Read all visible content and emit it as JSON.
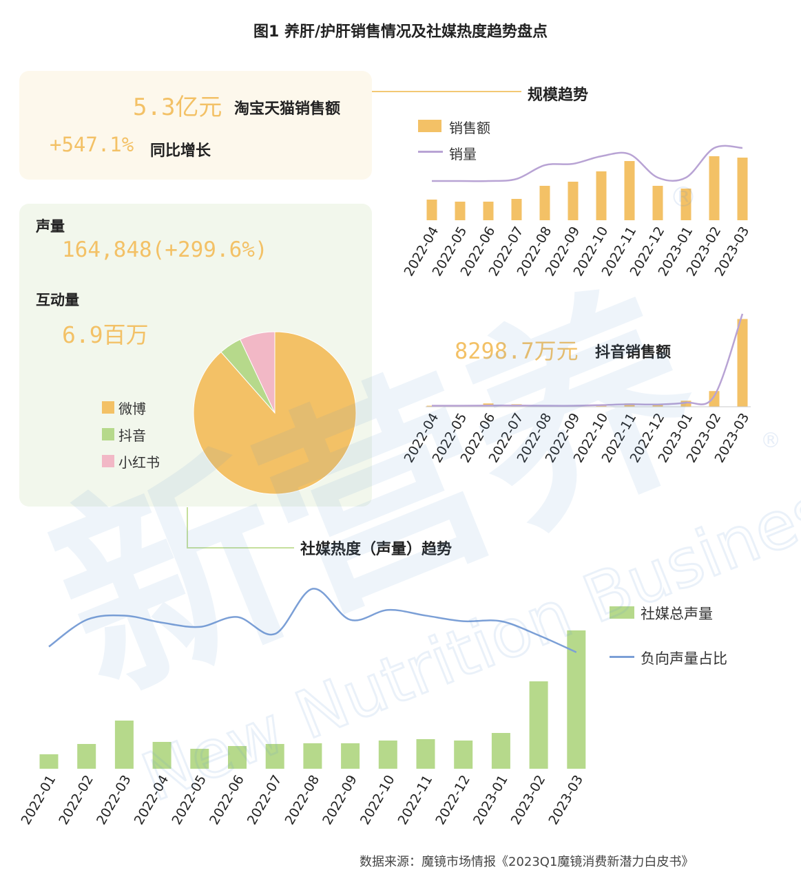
{
  "title": "图1 养肝/护肝销售情况及社媒热度趋势盘点",
  "sales_summary": {
    "amount": "5.3亿元",
    "amount_label": "淘宝天猫销售额",
    "growth": "+547.1%",
    "growth_label": "同比增长"
  },
  "scale_trend": {
    "title": "规模趋势",
    "legend_sales": "销售额",
    "legend_volume": "销量"
  },
  "social_summary": {
    "voice_label": "声量",
    "voice_value": "164,848(+299.6%)",
    "interaction_label": "互动量",
    "interaction_value": "6.9百万",
    "legend": [
      "微博",
      "抖音",
      "小红书"
    ]
  },
  "douyin": {
    "amount": "8298.7万元",
    "label": "抖音销售额"
  },
  "social_trend_title": "社媒热度（声量）趋势",
  "social_legend": {
    "bars": "社媒总声量",
    "line": "负向声量占比"
  },
  "watermark": {
    "cn": "新营养",
    "en": "New Nutrition Business"
  },
  "source": "数据来源：魔镜市场情报《2023Q1魔镜消费新潜力白皮书》",
  "colors": {
    "orange": "#f3c166",
    "purple": "#b8a3d4",
    "green": "#b6d98b",
    "pink": "#f2b8c6",
    "blue_line": "#7b9fd6",
    "leader_orange": "#f3c873",
    "leader_green": "#c5df9c"
  },
  "chart_data": [
    {
      "type": "bar",
      "title": "规模趋势",
      "categories": [
        "2022-04",
        "2022-05",
        "2022-06",
        "2022-07",
        "2022-08",
        "2022-09",
        "2022-10",
        "2022-11",
        "2022-12",
        "2023-01",
        "2023-02",
        "2023-03"
      ],
      "series": [
        {
          "name": "销售额",
          "kind": "bar",
          "color": "#f3c166",
          "values": [
            30,
            27,
            27,
            31,
            50,
            56,
            71,
            86,
            50,
            46,
            93,
            91
          ]
        },
        {
          "name": "销量",
          "kind": "line",
          "color": "#b8a3d4",
          "values": [
            57,
            57,
            57,
            60,
            80,
            82,
            93,
            96,
            62,
            62,
            105,
            105
          ]
        }
      ],
      "ylim": [
        0,
        110
      ]
    },
    {
      "type": "bar",
      "title": "抖音销售额",
      "categories": [
        "2022-04",
        "2022-05",
        "2022-06",
        "2022-07",
        "2022-08",
        "2022-09",
        "2022-10",
        "2022-11",
        "2022-12",
        "2023-01",
        "2023-02",
        "2023-03"
      ],
      "series": [
        {
          "kind": "bar",
          "color": "#f3c166",
          "values": [
            0.5,
            0.5,
            1.6,
            1.2,
            0.6,
            0.7,
            1.0,
            1.6,
            1.4,
            2.9,
            7.6,
            42.5
          ]
        },
        {
          "kind": "line",
          "color": "#b8a3d4",
          "values": [
            0.5,
            0.5,
            0.6,
            0.6,
            0.5,
            0.5,
            0.8,
            1.2,
            1.1,
            2.0,
            5.2,
            45
          ]
        }
      ],
      "ylim": [
        0,
        45
      ]
    },
    {
      "type": "pie",
      "labels": [
        "微博",
        "抖音",
        "小红书"
      ],
      "values": [
        88.5,
        4.5,
        7.0
      ],
      "colors": [
        "#f3c166",
        "#b6d98b",
        "#f2b8c6"
      ]
    },
    {
      "type": "bar",
      "title": "社媒热度（声量）趋势",
      "categories": [
        "2022-01",
        "2022-02",
        "2022-03",
        "2022-04",
        "2022-05",
        "2022-06",
        "2022-07",
        "2022-08",
        "2022-09",
        "2022-10",
        "2022-11",
        "2022-12",
        "2023-01",
        "2023-02",
        "2023-03"
      ],
      "series": [
        {
          "name": "社媒总声量",
          "kind": "bar",
          "color": "#b6d98b",
          "values": [
            21,
            36,
            70,
            39,
            29,
            33,
            36,
            37,
            37,
            41,
            43,
            41,
            52,
            127,
            201
          ]
        },
        {
          "name": "负向声量占比",
          "kind": "line",
          "color": "#7b9fd6",
          "values": [
            49,
            68,
            71,
            66,
            63,
            70,
            58,
            90,
            68,
            75,
            71,
            67,
            67,
            57,
            45
          ]
        }
      ],
      "ylim": [
        0,
        210
      ]
    }
  ]
}
